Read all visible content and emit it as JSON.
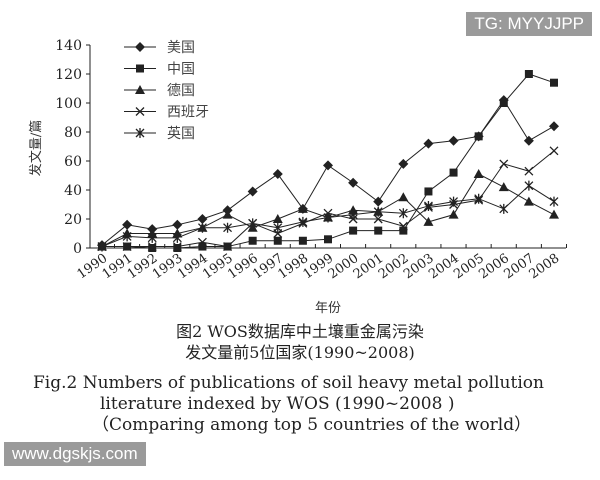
{
  "watermark_top": "TG: MYYJJPP",
  "watermark_bottom": "www.dgskjs.com",
  "caption": {
    "cn1": "图2 WOS数据库中土壤重金属污染",
    "cn2": "发文量前5位国家(1990~2008)",
    "en1": "Fig.2  Numbers of publications of soil heavy metal pollution",
    "en2": "literature indexed by WOS (1990~2008 )",
    "en3": "（Comparing among top 5 countries of the world）"
  },
  "chart_data": {
    "type": "line",
    "xlabel": "年份",
    "ylabel": "发文量/篇",
    "ylim": [
      0,
      140
    ],
    "yticks": [
      0,
      20,
      40,
      60,
      80,
      100,
      120,
      140
    ],
    "categories": [
      "1990",
      "1991",
      "1992",
      "1993",
      "1994",
      "1995",
      "1996",
      "1997",
      "1998",
      "1999",
      "2000",
      "2001",
      "2002",
      "2003",
      "2004",
      "2005",
      "2006",
      "2007",
      "2008"
    ],
    "legend_position": "top-left",
    "grid": false,
    "series": [
      {
        "name": "美国",
        "marker": "diamond",
        "values": [
          2,
          16,
          13,
          16,
          20,
          26,
          39,
          51,
          27,
          57,
          45,
          32,
          58,
          72,
          74,
          77,
          102,
          74,
          84
        ]
      },
      {
        "name": "中国",
        "marker": "square",
        "values": [
          1,
          1,
          0,
          0,
          1,
          1,
          5,
          5,
          5,
          6,
          12,
          12,
          12,
          39,
          52,
          77,
          100,
          120,
          114
        ]
      },
      {
        "name": "德国",
        "marker": "triangle",
        "values": [
          1,
          10,
          10,
          10,
          14,
          23,
          14,
          20,
          27,
          21,
          26,
          25,
          35,
          18,
          23,
          51,
          42,
          32,
          23
        ]
      },
      {
        "name": "西班牙",
        "marker": "x",
        "values": [
          1,
          1,
          1,
          1,
          4,
          1,
          17,
          10,
          17,
          24,
          20,
          20,
          15,
          28,
          30,
          33,
          58,
          53,
          67
        ]
      },
      {
        "name": "英国",
        "marker": "asterisk",
        "values": [
          1,
          8,
          7,
          7,
          14,
          14,
          17,
          14,
          18,
          21,
          23,
          25,
          24,
          29,
          32,
          34,
          27,
          43,
          32
        ]
      }
    ]
  }
}
